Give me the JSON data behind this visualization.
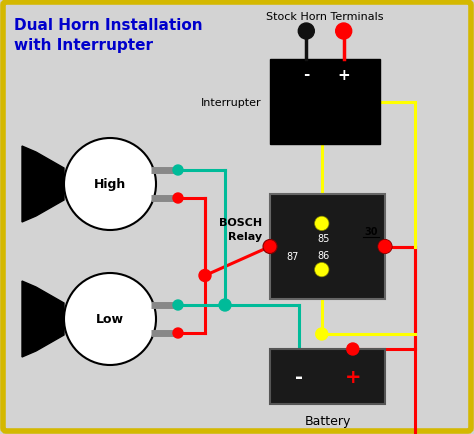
{
  "title_line1": "Dual Horn Installation",
  "title_line2": "with Interrupter",
  "title_color": "#0000cc",
  "title_fontsize": 11,
  "bg_color": "#d3d3d3",
  "border_color": "#d4b800",
  "border_lw": 4,
  "interrupter_label": "Stock Horn Terminals",
  "interrupter_sublabel": "Interrupter",
  "relay_label_1": "BOSCH",
  "relay_label_2": "Relay",
  "relay_pin_85": "85",
  "relay_pin_86": "86",
  "relay_pin_87": "87",
  "relay_pin_30": "30",
  "battery_label": "Battery",
  "horn_high_label": "High",
  "horn_low_label": "Low",
  "wire_red": "#ff0000",
  "wire_green": "#00bb99",
  "wire_yellow": "#ffff00",
  "wire_black": "#111111",
  "wire_lw": 2.2
}
